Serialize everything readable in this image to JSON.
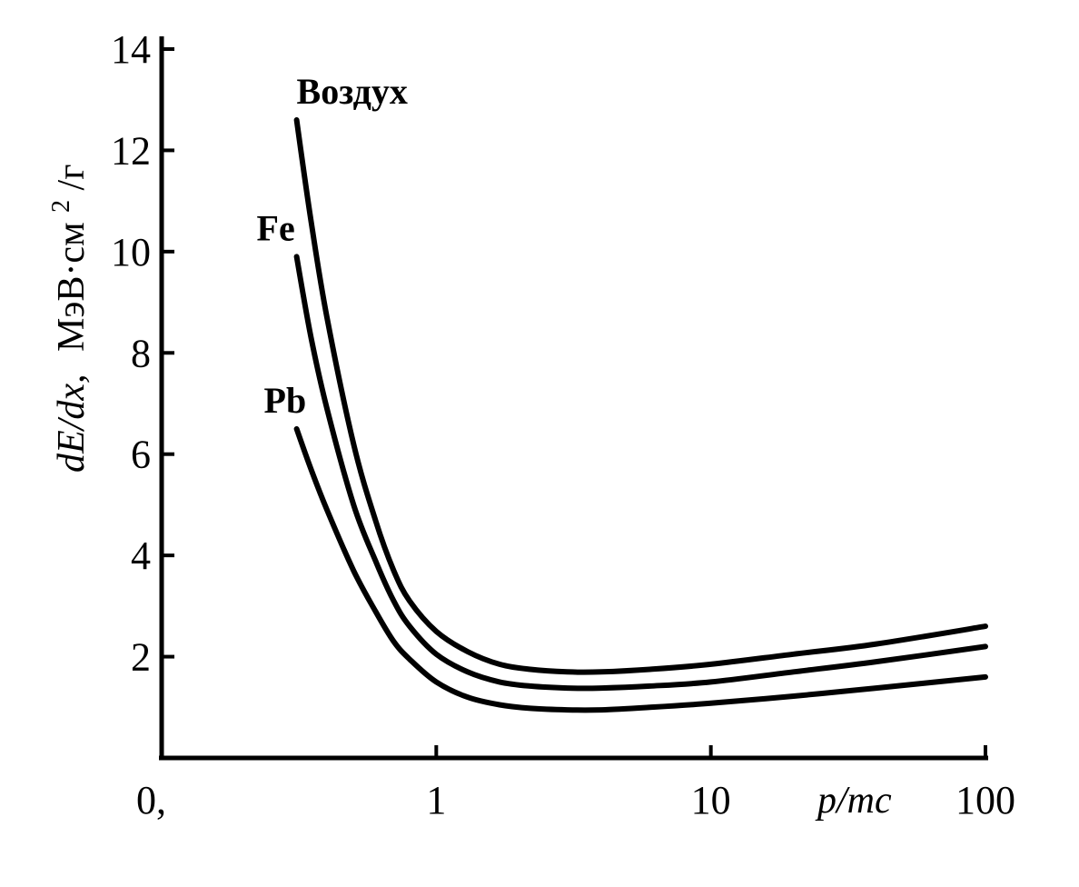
{
  "chart_data": {
    "type": "line",
    "x_scale": "log",
    "xlabel": "p/mc",
    "ylabel": "dE/dx,  МэВ·см²/г",
    "ylabel_parts": {
      "math": "dE/dx,",
      "unit": "МэВ·см",
      "sup": "2",
      "unit_end": "/г"
    },
    "xlim": [
      0.1,
      100
    ],
    "ylim": [
      0,
      14
    ],
    "x_ticks": [
      {
        "value": 1,
        "label": "1"
      },
      {
        "value": 10,
        "label": "10"
      },
      {
        "value": 100,
        "label": "100"
      }
    ],
    "x_origin_label": "0,",
    "y_ticks": [
      {
        "value": 2,
        "label": "2"
      },
      {
        "value": 4,
        "label": "4"
      },
      {
        "value": 6,
        "label": "6"
      },
      {
        "value": 8,
        "label": "8"
      },
      {
        "value": 10,
        "label": "10"
      },
      {
        "value": 12,
        "label": "12"
      },
      {
        "value": 14,
        "label": "14"
      }
    ],
    "grid": false,
    "legend": "none",
    "series": [
      {
        "name": "Воздух",
        "x": [
          0.31,
          0.35,
          0.4,
          0.5,
          0.6,
          0.7,
          0.8,
          1.0,
          1.3,
          1.7,
          2.2,
          3.0,
          4.0,
          6.0,
          10.0,
          20.0,
          40.0,
          100.0
        ],
        "y": [
          12.6,
          10.6,
          8.7,
          6.2,
          4.7,
          3.7,
          3.1,
          2.5,
          2.1,
          1.85,
          1.75,
          1.7,
          1.7,
          1.75,
          1.85,
          2.05,
          2.25,
          2.6
        ]
      },
      {
        "name": "Fe",
        "x": [
          0.31,
          0.35,
          0.4,
          0.5,
          0.6,
          0.7,
          0.8,
          1.0,
          1.3,
          1.7,
          2.2,
          3.0,
          4.0,
          6.0,
          10.0,
          20.0,
          40.0,
          100.0
        ],
        "y": [
          9.9,
          8.3,
          6.9,
          5.0,
          3.9,
          3.1,
          2.6,
          2.05,
          1.7,
          1.5,
          1.42,
          1.38,
          1.38,
          1.42,
          1.5,
          1.7,
          1.9,
          2.2
        ]
      },
      {
        "name": "Pb",
        "x": [
          0.31,
          0.35,
          0.4,
          0.5,
          0.6,
          0.7,
          0.8,
          1.0,
          1.3,
          1.7,
          2.2,
          3.0,
          4.0,
          6.0,
          10.0,
          20.0,
          40.0,
          100.0
        ],
        "y": [
          6.5,
          5.7,
          4.9,
          3.7,
          2.9,
          2.3,
          1.95,
          1.5,
          1.2,
          1.05,
          0.98,
          0.95,
          0.95,
          1.0,
          1.08,
          1.22,
          1.38,
          1.6
        ]
      }
    ]
  }
}
